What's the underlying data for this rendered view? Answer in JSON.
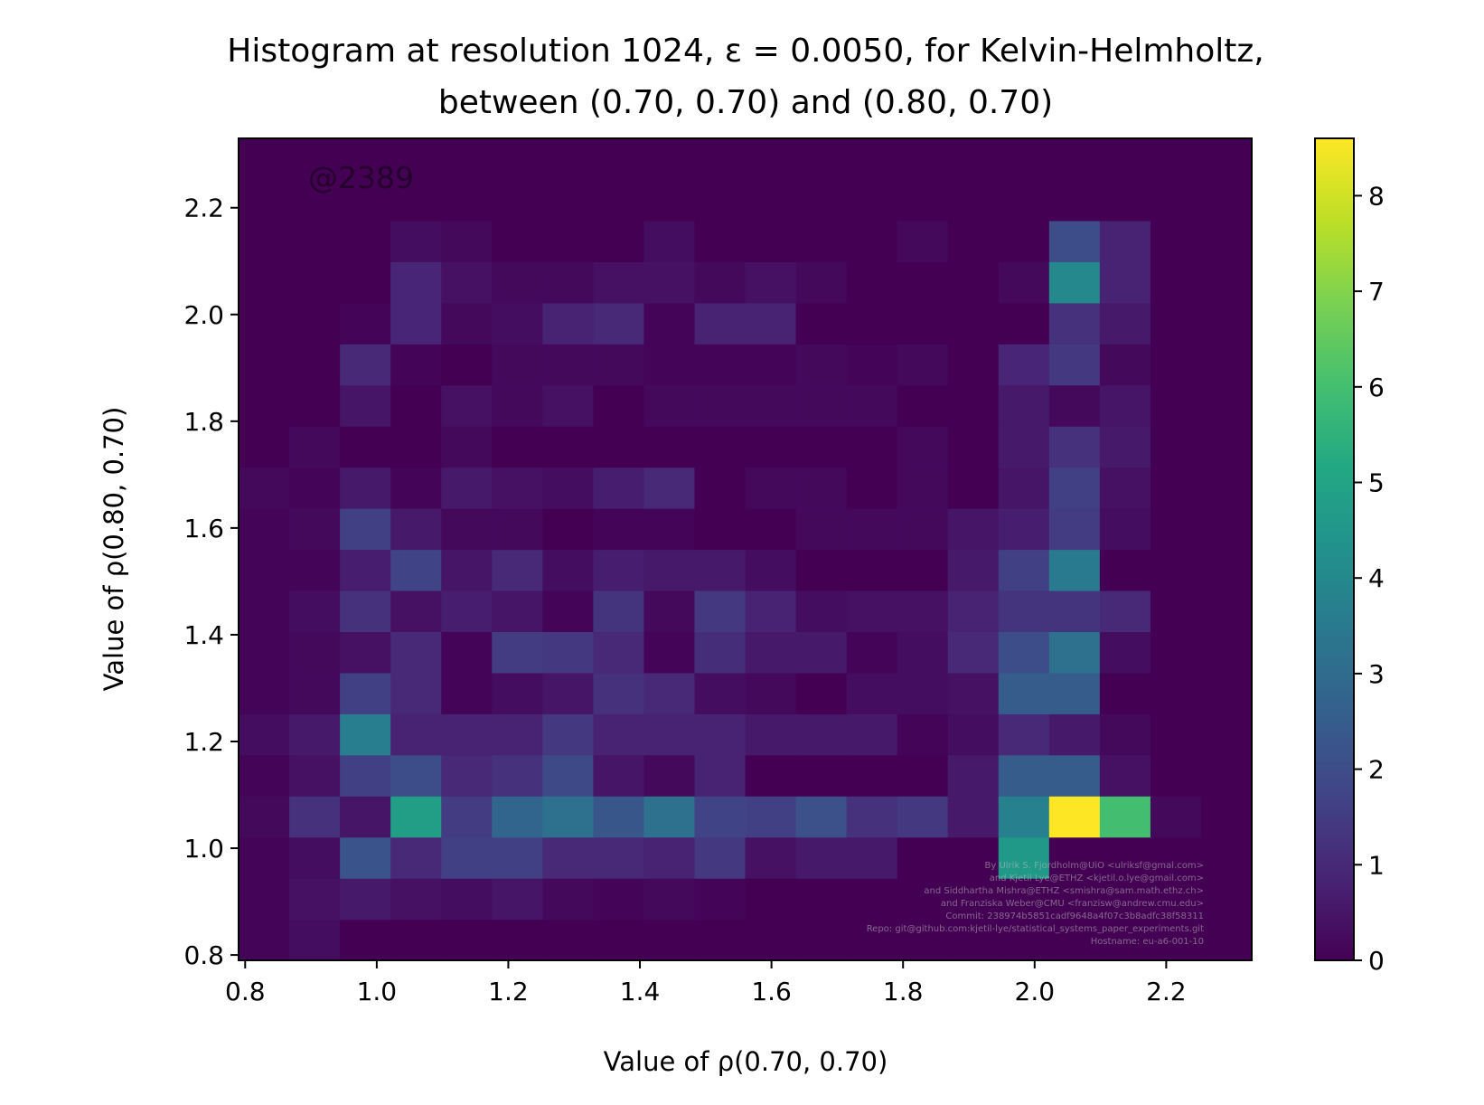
{
  "chart_data": {
    "type": "heatmap",
    "title_line1": "Histogram at resolution 1024, ε = 0.0050, for Kelvin-Helmholtz,",
    "title_line2": "between (0.70, 0.70) and (0.80, 0.70)",
    "xlabel": "Value of ρ(0.70, 0.70)",
    "ylabel": "Value of ρ(0.80, 0.70)",
    "annotation": "@2389",
    "credits": [
      "By Ulrik S. Fjordholm@UiO <ulriksf@gmal.com>",
      "and Kjetil Lye@ETHZ <kjetil.o.lye@gmail.com>",
      "and Siddhartha Mishra@ETHZ <smishra@sam.math.ethz.ch>",
      "and Franziska Weber@CMU <franzisw@andrew.cmu.edu>",
      "Commit: 238974b5851cadf9648a4f07c3b8adfc38f58311",
      "Repo: git@github.com:kjetil-lye/statistical_systems_paper_experiments.git",
      "Hostname: eu-a6-001-10"
    ],
    "colormap": "viridis",
    "colorbar": {
      "min": 0,
      "max": 8.6,
      "ticks": [
        "0",
        "1",
        "2",
        "3",
        "4",
        "5",
        "6",
        "7",
        "8"
      ]
    },
    "xlim": [
      0.79,
      2.33
    ],
    "ylim": [
      0.79,
      2.33
    ],
    "x_ticks": [
      "0.8",
      "1.0",
      "1.2",
      "1.4",
      "1.6",
      "1.8",
      "2.0",
      "2.2"
    ],
    "y_ticks": [
      "0.8",
      "1.0",
      "1.2",
      "1.4",
      "1.6",
      "1.8",
      "2.0",
      "2.2"
    ],
    "x_bin_edges": [
      0.79,
      0.867,
      0.944,
      1.021,
      1.098,
      1.175,
      1.252,
      1.329,
      1.406,
      1.483,
      1.56,
      1.637,
      1.714,
      1.791,
      1.868,
      1.945,
      2.022,
      2.099,
      2.176,
      2.253,
      2.33
    ],
    "y_bin_edges": [
      0.79,
      0.867,
      0.944,
      1.021,
      1.098,
      1.175,
      1.252,
      1.329,
      1.406,
      1.483,
      1.56,
      1.637,
      1.714,
      1.791,
      1.868,
      1.945,
      2.022,
      2.099,
      2.176,
      2.253,
      2.33
    ],
    "values": [
      [
        0.1,
        0.3,
        0.0,
        0.0,
        0.0,
        0.0,
        0.0,
        0.0,
        0.0,
        0.0,
        0.0,
        0.0,
        0.0,
        0.0,
        0.0,
        0.0,
        0.0,
        0.0,
        0.0,
        0.0
      ],
      [
        0.1,
        0.4,
        0.6,
        0.4,
        0.3,
        0.5,
        0.2,
        0.1,
        0.2,
        0.1,
        0.0,
        0.0,
        0.0,
        0.0,
        0.0,
        0.0,
        0.0,
        0.0,
        0.0,
        0.0
      ],
      [
        0.1,
        0.3,
        2.2,
        1.0,
        1.6,
        1.6,
        1.0,
        1.0,
        0.8,
        1.4,
        0.4,
        0.6,
        0.6,
        0.0,
        0.0,
        4.6,
        0.0,
        0.0,
        0.0,
        0.0
      ],
      [
        0.2,
        1.2,
        0.5,
        4.8,
        1.5,
        2.8,
        3.2,
        2.3,
        3.2,
        1.7,
        1.6,
        2.1,
        1.2,
        1.4,
        0.6,
        3.7,
        8.6,
        6.0,
        0.2,
        0.0
      ],
      [
        0.1,
        0.4,
        1.6,
        2.0,
        1.0,
        1.2,
        1.9,
        0.5,
        0.2,
        0.8,
        0.0,
        0.0,
        0.0,
        0.0,
        0.6,
        2.5,
        2.5,
        0.4,
        0.0,
        0.0
      ],
      [
        0.3,
        0.6,
        3.6,
        0.8,
        0.8,
        0.8,
        1.4,
        0.8,
        0.8,
        0.8,
        0.6,
        0.6,
        0.6,
        0.1,
        0.3,
        1.0,
        0.6,
        0.2,
        0.0,
        0.0
      ],
      [
        0.1,
        0.2,
        1.6,
        1.0,
        0.1,
        0.3,
        0.5,
        1.2,
        1.0,
        0.3,
        0.2,
        0.0,
        0.3,
        0.3,
        0.4,
        2.5,
        2.5,
        0.0,
        0.0,
        0.0
      ],
      [
        0.1,
        0.2,
        0.4,
        1.0,
        0.1,
        1.5,
        1.4,
        1.0,
        0.1,
        1.1,
        0.6,
        0.6,
        0.1,
        0.3,
        1.0,
        2.0,
        3.2,
        0.3,
        0.0,
        0.0
      ],
      [
        0.1,
        0.3,
        1.2,
        0.4,
        0.7,
        0.5,
        0.1,
        1.3,
        0.2,
        1.4,
        0.8,
        0.3,
        0.4,
        0.4,
        0.8,
        1.3,
        1.3,
        1.0,
        0.0,
        0.0
      ],
      [
        0.1,
        0.1,
        0.7,
        1.7,
        0.5,
        1.0,
        0.3,
        0.7,
        0.6,
        0.6,
        0.3,
        0.0,
        0.0,
        0.0,
        0.6,
        1.6,
        3.5,
        0.0,
        0.0,
        0.0
      ],
      [
        0.1,
        0.2,
        1.6,
        0.6,
        0.2,
        0.2,
        0.0,
        0.1,
        0.1,
        0.0,
        0.0,
        0.2,
        0.2,
        0.2,
        0.5,
        0.7,
        1.5,
        0.3,
        0.0,
        0.0
      ],
      [
        0.2,
        0.1,
        0.6,
        0.1,
        0.6,
        0.4,
        0.3,
        0.7,
        1.0,
        0.0,
        0.2,
        0.2,
        0.0,
        0.2,
        0.0,
        0.5,
        1.6,
        0.4,
        0.0,
        0.0
      ],
      [
        0.0,
        0.2,
        0.0,
        0.0,
        0.2,
        0.0,
        0.0,
        0.0,
        0.0,
        0.0,
        0.0,
        0.0,
        0.0,
        0.2,
        0.0,
        0.6,
        1.2,
        0.6,
        0.0,
        0.0
      ],
      [
        0.0,
        0.0,
        0.5,
        0.0,
        0.4,
        0.2,
        0.4,
        0.0,
        0.2,
        0.2,
        0.2,
        0.2,
        0.2,
        0.0,
        0.0,
        0.6,
        0.2,
        0.5,
        0.0,
        0.0
      ],
      [
        0.0,
        0.0,
        1.0,
        0.1,
        0.0,
        0.2,
        0.2,
        0.2,
        0.1,
        0.1,
        0.1,
        0.2,
        0.1,
        0.2,
        0.0,
        0.9,
        1.4,
        0.2,
        0.0,
        0.0
      ],
      [
        0.0,
        0.0,
        0.1,
        0.9,
        0.2,
        0.3,
        0.8,
        1.0,
        0.1,
        0.8,
        0.8,
        0.0,
        0.0,
        0.0,
        0.0,
        0.0,
        1.2,
        0.6,
        0.0,
        0.0
      ],
      [
        0.0,
        0.0,
        0.0,
        0.9,
        0.4,
        0.2,
        0.2,
        0.4,
        0.4,
        0.2,
        0.4,
        0.2,
        0.0,
        0.0,
        0.0,
        0.2,
        4.0,
        0.8,
        0.0,
        0.0
      ],
      [
        0.0,
        0.0,
        0.0,
        0.3,
        0.2,
        0.0,
        0.0,
        0.0,
        0.3,
        0.0,
        0.0,
        0.0,
        0.0,
        0.2,
        0.0,
        0.0,
        2.0,
        0.8,
        0.0,
        0.0
      ],
      [
        0.0,
        0.0,
        0.0,
        0.0,
        0.0,
        0.0,
        0.0,
        0.0,
        0.0,
        0.0,
        0.0,
        0.0,
        0.0,
        0.0,
        0.0,
        0.0,
        0.0,
        0.0,
        0.0,
        0.0
      ],
      [
        0.0,
        0.0,
        0.0,
        0.0,
        0.0,
        0.0,
        0.0,
        0.0,
        0.0,
        0.0,
        0.0,
        0.0,
        0.0,
        0.0,
        0.0,
        0.0,
        0.0,
        0.0,
        0.0,
        0.0
      ]
    ]
  }
}
